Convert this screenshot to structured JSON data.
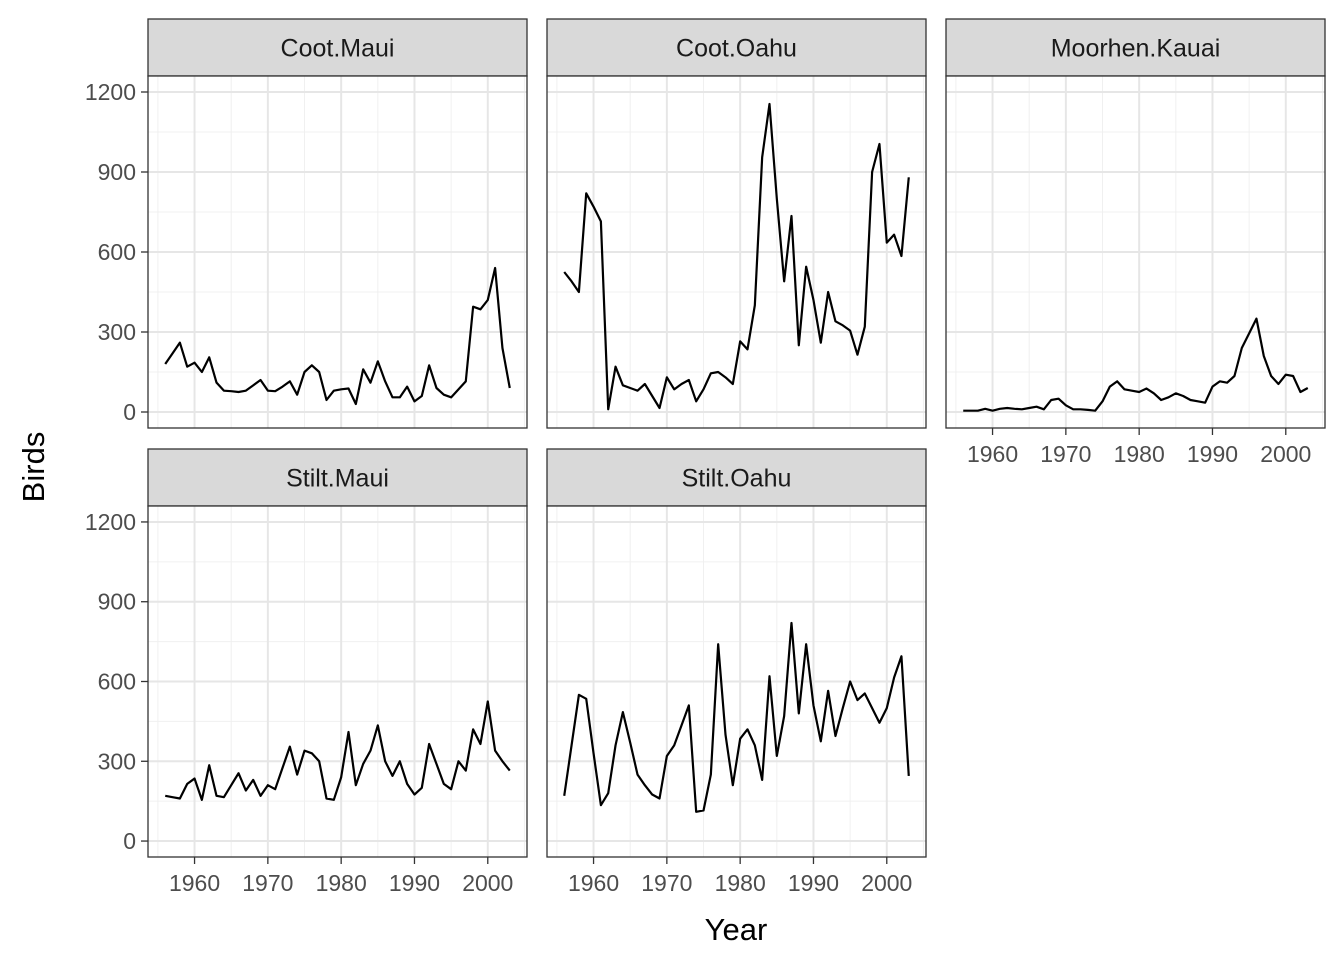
{
  "chart_data": {
    "type": "line",
    "xlabel": "Year",
    "ylabel": "Birds",
    "xlim": [
      1956,
      2003
    ],
    "ylim": [
      0,
      1200
    ],
    "x_ticks": [
      1960,
      1970,
      1980,
      1990,
      2000
    ],
    "y_ticks": [
      0,
      300,
      600,
      900,
      1200
    ],
    "grid": true,
    "facets": [
      {
        "name": "Coot.Maui",
        "x": [
          1956,
          1957,
          1958,
          1959,
          1960,
          1961,
          1962,
          1963,
          1964,
          1965,
          1966,
          1967,
          1968,
          1969,
          1970,
          1971,
          1972,
          1973,
          1974,
          1975,
          1976,
          1977,
          1978,
          1979,
          1980,
          1981,
          1982,
          1983,
          1984,
          1985,
          1986,
          1987,
          1988,
          1989,
          1990,
          1991,
          1992,
          1993,
          1994,
          1995,
          1996,
          1997,
          1998,
          1999,
          2000,
          2001,
          2002,
          2003
        ],
        "y": [
          180,
          220,
          260,
          170,
          185,
          150,
          205,
          110,
          80,
          78,
          75,
          80,
          100,
          120,
          80,
          78,
          95,
          115,
          65,
          150,
          175,
          150,
          45,
          80,
          85,
          88,
          30,
          160,
          110,
          190,
          115,
          55,
          55,
          95,
          40,
          60,
          175,
          90,
          65,
          55,
          85,
          115,
          395,
          385,
          420,
          540,
          240,
          90
        ]
      },
      {
        "name": "Coot.Oahu",
        "x": [
          1956,
          1957,
          1958,
          1959,
          1960,
          1961,
          1962,
          1963,
          1964,
          1965,
          1966,
          1967,
          1968,
          1969,
          1970,
          1971,
          1972,
          1973,
          1974,
          1975,
          1976,
          1977,
          1978,
          1979,
          1980,
          1981,
          1982,
          1983,
          1984,
          1985,
          1986,
          1987,
          1988,
          1989,
          1990,
          1991,
          1992,
          1993,
          1994,
          1995,
          1996,
          1997,
          1998,
          1999,
          2000,
          2001,
          2002,
          2003
        ],
        "y": [
          525,
          490,
          450,
          820,
          770,
          715,
          10,
          170,
          100,
          90,
          80,
          105,
          60,
          15,
          130,
          85,
          105,
          120,
          40,
          85,
          145,
          150,
          130,
          105,
          265,
          235,
          400,
          955,
          1155,
          800,
          490,
          735,
          250,
          545,
          420,
          260,
          450,
          340,
          325,
          305,
          215,
          320,
          900,
          1005,
          635,
          665,
          585,
          880
        ]
      },
      {
        "name": "Moorhen.Kauai",
        "x": [
          1956,
          1957,
          1958,
          1959,
          1960,
          1961,
          1962,
          1963,
          1964,
          1965,
          1966,
          1967,
          1968,
          1969,
          1970,
          1971,
          1972,
          1973,
          1974,
          1975,
          1976,
          1977,
          1978,
          1979,
          1980,
          1981,
          1982,
          1983,
          1984,
          1985,
          1986,
          1987,
          1988,
          1989,
          1990,
          1991,
          1992,
          1993,
          1994,
          1995,
          1996,
          1997,
          1998,
          1999,
          2000,
          2001,
          2002,
          2003
        ],
        "y": [
          5,
          5,
          5,
          12,
          5,
          12,
          15,
          12,
          10,
          15,
          20,
          10,
          45,
          50,
          25,
          10,
          10,
          8,
          5,
          40,
          95,
          115,
          85,
          80,
          75,
          88,
          70,
          45,
          55,
          70,
          60,
          45,
          40,
          35,
          95,
          115,
          110,
          135,
          240,
          295,
          350,
          210,
          135,
          105,
          140,
          135,
          75,
          90
        ]
      },
      {
        "name": "Stilt.Maui",
        "x": [
          1956,
          1957,
          1958,
          1959,
          1960,
          1961,
          1962,
          1963,
          1964,
          1965,
          1966,
          1967,
          1968,
          1969,
          1970,
          1971,
          1972,
          1973,
          1974,
          1975,
          1976,
          1977,
          1978,
          1979,
          1980,
          1981,
          1982,
          1983,
          1984,
          1985,
          1986,
          1987,
          1988,
          1989,
          1990,
          1991,
          1992,
          1993,
          1994,
          1995,
          1996,
          1997,
          1998,
          1999,
          2000,
          2001,
          2002,
          2003
        ],
        "y": [
          170,
          165,
          160,
          215,
          235,
          155,
          285,
          170,
          165,
          210,
          255,
          190,
          230,
          170,
          210,
          195,
          275,
          355,
          250,
          340,
          330,
          300,
          160,
          155,
          240,
          410,
          210,
          290,
          340,
          435,
          300,
          245,
          300,
          215,
          175,
          200,
          365,
          290,
          215,
          195,
          300,
          265,
          420,
          365,
          525,
          340,
          300,
          265
        ]
      },
      {
        "name": "Stilt.Oahu",
        "x": [
          1956,
          1957,
          1958,
          1959,
          1960,
          1961,
          1962,
          1963,
          1964,
          1965,
          1966,
          1967,
          1968,
          1969,
          1970,
          1971,
          1972,
          1973,
          1974,
          1975,
          1976,
          1977,
          1978,
          1979,
          1980,
          1981,
          1982,
          1983,
          1984,
          1985,
          1986,
          1987,
          1988,
          1989,
          1990,
          1991,
          1992,
          1993,
          1994,
          1995,
          1996,
          1997,
          1998,
          1999,
          2000,
          2001,
          2002,
          2003
        ],
        "y": [
          170,
          360,
          550,
          535,
          330,
          135,
          180,
          360,
          485,
          370,
          250,
          210,
          175,
          160,
          320,
          360,
          435,
          510,
          110,
          115,
          250,
          740,
          400,
          210,
          385,
          420,
          360,
          230,
          620,
          320,
          470,
          820,
          480,
          740,
          510,
          375,
          565,
          395,
          500,
          600,
          530,
          555,
          500,
          445,
          500,
          615,
          695,
          245
        ]
      }
    ]
  }
}
